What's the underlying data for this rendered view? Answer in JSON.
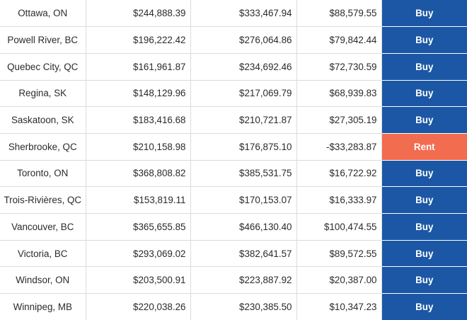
{
  "colors": {
    "buy": "#1b57a4",
    "rent": "#f26c4f",
    "grid": "#dcdcdc"
  },
  "rows": [
    {
      "city": "Ottawa, ON",
      "a": "$244,888.39",
      "b": "$333,467.94",
      "c": "$88,579.55",
      "verdict": "Buy"
    },
    {
      "city": "Powell River, BC",
      "a": "$196,222.42",
      "b": "$276,064.86",
      "c": "$79,842.44",
      "verdict": "Buy"
    },
    {
      "city": "Quebec City, QC",
      "a": "$161,961.87",
      "b": "$234,692.46",
      "c": "$72,730.59",
      "verdict": "Buy"
    },
    {
      "city": "Regina, SK",
      "a": "$148,129.96",
      "b": "$217,069.79",
      "c": "$68,939.83",
      "verdict": "Buy"
    },
    {
      "city": "Saskatoon, SK",
      "a": "$183,416.68",
      "b": "$210,721.87",
      "c": "$27,305.19",
      "verdict": "Buy"
    },
    {
      "city": "Sherbrooke, QC",
      "a": "$210,158.98",
      "b": "$176,875.10",
      "c": "-$33,283.87",
      "verdict": "Rent"
    },
    {
      "city": "Toronto, ON",
      "a": "$368,808.82",
      "b": "$385,531.75",
      "c": "$16,722.92",
      "verdict": "Buy"
    },
    {
      "city": "Trois-Rivières, QC",
      "a": "$153,819.11",
      "b": "$170,153.07",
      "c": "$16,333.97",
      "verdict": "Buy"
    },
    {
      "city": "Vancouver, BC",
      "a": "$365,655.85",
      "b": "$466,130.40",
      "c": "$100,474.55",
      "verdict": "Buy"
    },
    {
      "city": "Victoria, BC",
      "a": "$293,069.02",
      "b": "$382,641.57",
      "c": "$89,572.55",
      "verdict": "Buy"
    },
    {
      "city": "Windsor, ON",
      "a": "$203,500.91",
      "b": "$223,887.92",
      "c": "$20,387.00",
      "verdict": "Buy"
    },
    {
      "city": "Winnipeg, MB",
      "a": "$220,038.26",
      "b": "$230,385.50",
      "c": "$10,347.23",
      "verdict": "Buy"
    }
  ]
}
